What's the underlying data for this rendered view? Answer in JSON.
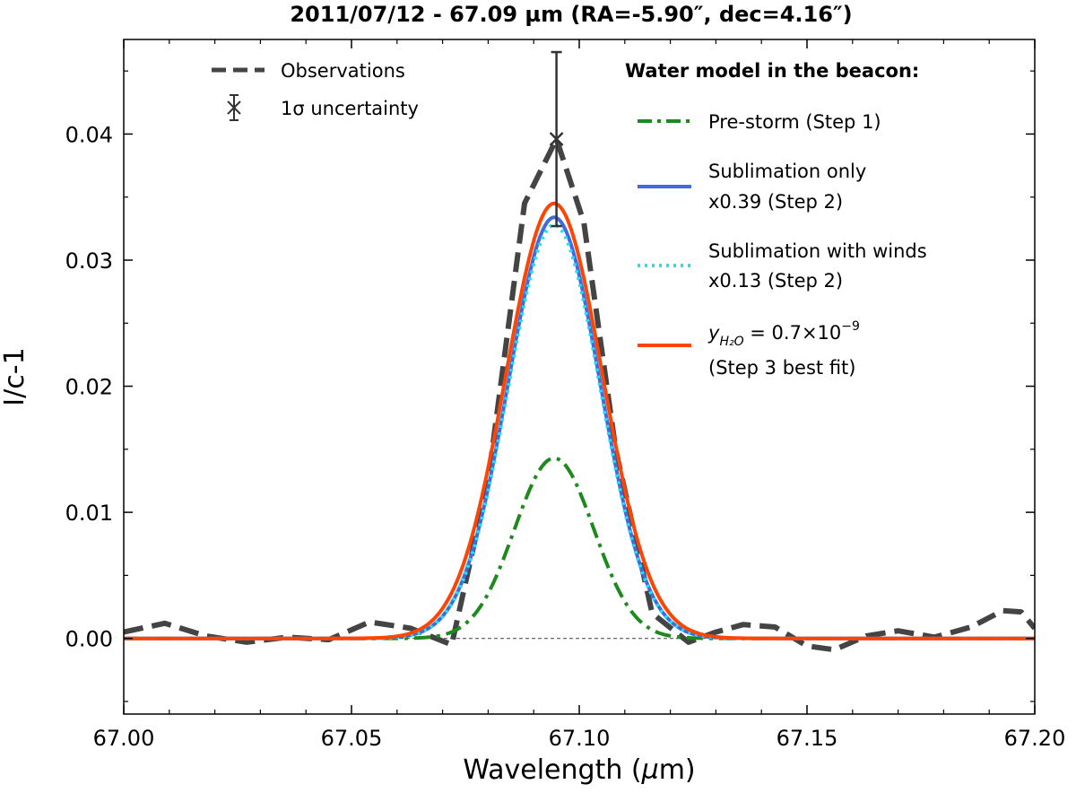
{
  "chart_data": {
    "type": "line",
    "title": "2011/07/12 - 67.09 µm (RA=-5.90″, dec=4.16″)",
    "xlabel_text": "Wavelength (",
    "xlabel_mu": "µ",
    "xlabel_unit": "m)",
    "ylabel": "I/c-1",
    "xlim": [
      67.0,
      67.2
    ],
    "ylim": [
      -0.006,
      0.0475
    ],
    "xticks": [
      67.0,
      67.05,
      67.1,
      67.15,
      67.2
    ],
    "xtick_labels": [
      "67.00",
      "67.05",
      "67.10",
      "67.15",
      "67.20"
    ],
    "yticks": [
      0.0,
      0.01,
      0.02,
      0.03,
      0.04
    ],
    "ytick_labels": [
      "0.00",
      "0.01",
      "0.02",
      "0.03",
      "0.04"
    ],
    "zero_line": true,
    "observations": {
      "name": "Observations",
      "color": "#444444",
      "x": [
        67.0,
        67.009,
        67.018,
        67.027,
        67.036,
        67.045,
        67.054,
        67.063,
        67.072,
        67.08,
        67.088,
        67.095,
        67.101,
        67.108,
        67.116,
        67.124,
        67.13,
        67.136,
        67.143,
        67.15,
        67.156,
        67.163,
        67.17,
        67.178,
        67.186,
        67.193,
        67.197,
        67.2
      ],
      "y": [
        0.0005,
        0.0012,
        0.0002,
        -0.0003,
        0.0001,
        -0.0001,
        0.0013,
        0.0008,
        -0.0005,
        0.0125,
        0.0345,
        0.0396,
        0.033,
        0.015,
        0.002,
        -0.0003,
        0.0005,
        0.0011,
        0.0009,
        -0.0006,
        -0.0009,
        0.0002,
        0.0006,
        0.0001,
        0.0009,
        0.0022,
        0.0021,
        0.0008
      ]
    },
    "uncertainty": {
      "name": "1σ uncertainty",
      "x": 67.095,
      "y": 0.0396,
      "err": 0.0069,
      "color": "#333333"
    },
    "models_title": "Water model in the beacon:",
    "models": [
      {
        "name": "Pre-storm (Step 1)",
        "lines": [
          "Pre-storm (Step 1)"
        ],
        "color": "#1e8a1e",
        "style": "dashdot",
        "center": 67.0945,
        "amplitude": 0.0143,
        "sigma": 0.0087
      },
      {
        "name": "Sublimation only x0.39 (Step 2)",
        "lines": [
          "Sublimation only",
          "x0.39 (Step 2)"
        ],
        "color": "#4169e1",
        "style": "solid",
        "center": 67.0945,
        "amplitude": 0.0334,
        "sigma": 0.0101
      },
      {
        "name": "Sublimation with winds x0.13 (Step 2)",
        "lines": [
          "Sublimation with winds",
          "x0.13 (Step 2)"
        ],
        "color": "#22e0f0",
        "style": "dotted",
        "center": 67.0945,
        "amplitude": 0.0328,
        "sigma": 0.0101
      },
      {
        "name": "y_H2O = 0.7×10^-9 (Step 3 best fit)",
        "lines": [
          "y",
          "H₂O",
          " = 0.7×10",
          "−9",
          "(Step 3 best fit)"
        ],
        "color": "#ff4500",
        "style": "solid",
        "center": 67.0945,
        "amplitude": 0.0345,
        "sigma": 0.0106
      }
    ]
  }
}
